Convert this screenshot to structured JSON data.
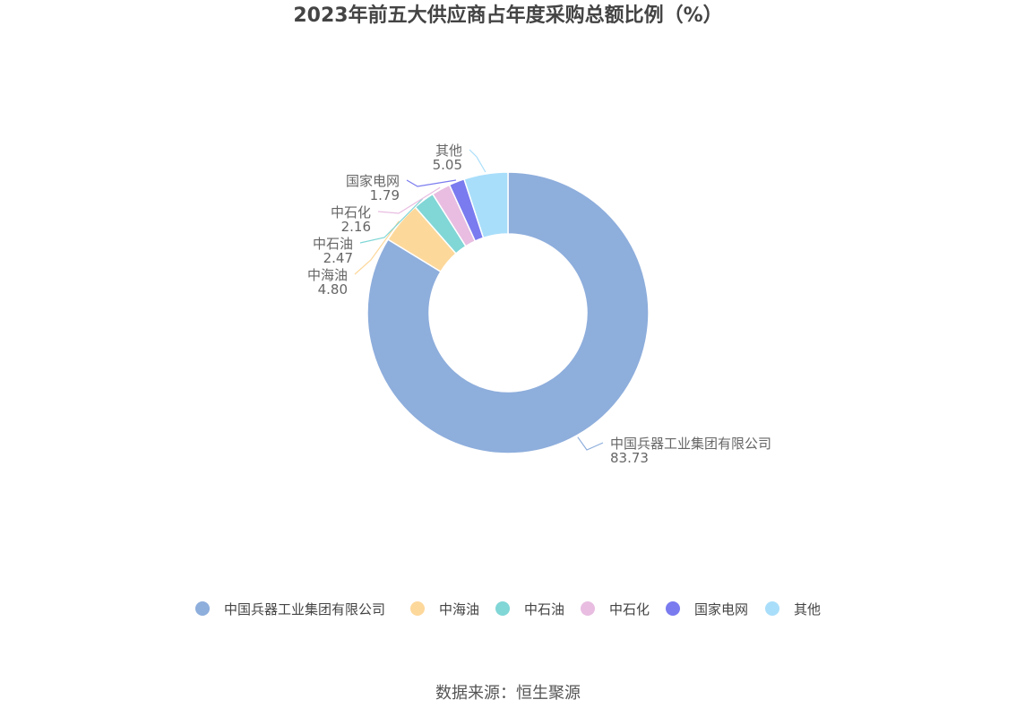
{
  "chart_data": {
    "type": "pie",
    "donut": true,
    "title": "2023年前五大供应商占年度采购总额比例（%）",
    "source": "数据来源：恒生聚源",
    "legend_position": "bottom",
    "slices": [
      {
        "name": "中国兵器工业集团有限公司",
        "value": 83.73,
        "label": "83.73",
        "color": "#8eaedc"
      },
      {
        "name": "中海油",
        "value": 4.8,
        "label": "4.80",
        "color": "#fdd89b"
      },
      {
        "name": "中石油",
        "value": 2.47,
        "label": "2.47",
        "color": "#81d6d6"
      },
      {
        "name": "中石化",
        "value": 2.16,
        "label": "2.16",
        "color": "#e8bde1"
      },
      {
        "name": "国家电网",
        "value": 1.79,
        "label": "1.79",
        "color": "#7a7bef"
      },
      {
        "name": "其他",
        "value": 5.05,
        "label": "5.05",
        "color": "#a9defa"
      }
    ]
  }
}
